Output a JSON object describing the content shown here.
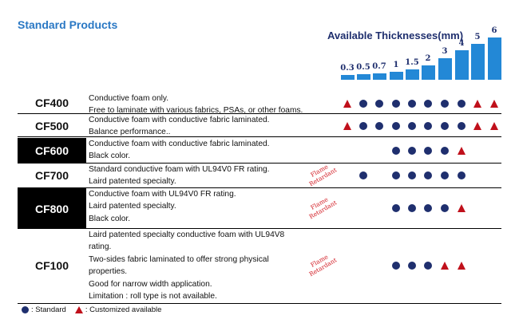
{
  "title": "Standard Products",
  "thickness": {
    "title": "Available Thicknesses(mm)",
    "values": [
      "0.3",
      "0.5",
      "0.7",
      "1",
      "1.5",
      "2",
      "3",
      "4",
      "5",
      "6"
    ],
    "bar_color": "#2388d6"
  },
  "flame_text": "Flame Retardant",
  "colors": {
    "standard": "#1f2f6e",
    "custom": "#c0101b"
  },
  "rows": [
    {
      "code": "CF400",
      "dark": false,
      "desc": [
        "Conductive foam only.",
        "Free to laminate with various fabrics, PSAs, or other foams."
      ],
      "flame": false,
      "marks": [
        "T",
        "S",
        "S",
        "S",
        "S",
        "S",
        "S",
        "S",
        "T",
        "T"
      ]
    },
    {
      "code": "CF500",
      "dark": false,
      "desc": [
        "Conductive foam with conductive fabric laminated.",
        "Balance performance.."
      ],
      "flame": false,
      "marks": [
        "T",
        "S",
        "S",
        "S",
        "S",
        "S",
        "S",
        "S",
        "T",
        "T"
      ]
    },
    {
      "code": "CF600",
      "dark": true,
      "desc": [
        "Conductive foam with conductive fabric laminated.",
        "Black color."
      ],
      "flame": false,
      "marks": [
        "",
        "",
        "",
        "S",
        "S",
        "S",
        "S",
        "T",
        "",
        ""
      ]
    },
    {
      "code": "CF700",
      "dark": false,
      "desc": [
        "Standard conductive foam with UL94V0 FR rating.",
        "Laird patented specialty."
      ],
      "flame": true,
      "marks": [
        "",
        "S",
        "",
        "S",
        "S",
        "S",
        "S",
        "S",
        "",
        ""
      ]
    },
    {
      "code": "CF800",
      "dark": true,
      "desc": [
        "Conductive foam with UL94V0 FR rating.",
        "Laird patented specialty.",
        "Black color."
      ],
      "flame": true,
      "marks": [
        "",
        "",
        "",
        "S",
        "S",
        "S",
        "S",
        "T",
        "",
        ""
      ]
    },
    {
      "code": "CF100",
      "dark": false,
      "desc": [
        "Laird patented specialty conductive foam with UL94V8",
        "rating.",
        "Two-sides fabric laminated to offer strong physical",
        "properties.",
        "Good for narrow width application.",
        "Limitation : roll type is not available."
      ],
      "flame": true,
      "marks": [
        "",
        "",
        "",
        "S",
        "S",
        "S",
        "T",
        "T",
        "",
        ""
      ]
    }
  ],
  "legend": {
    "standard": ": Standard",
    "custom": ": Customized available"
  }
}
